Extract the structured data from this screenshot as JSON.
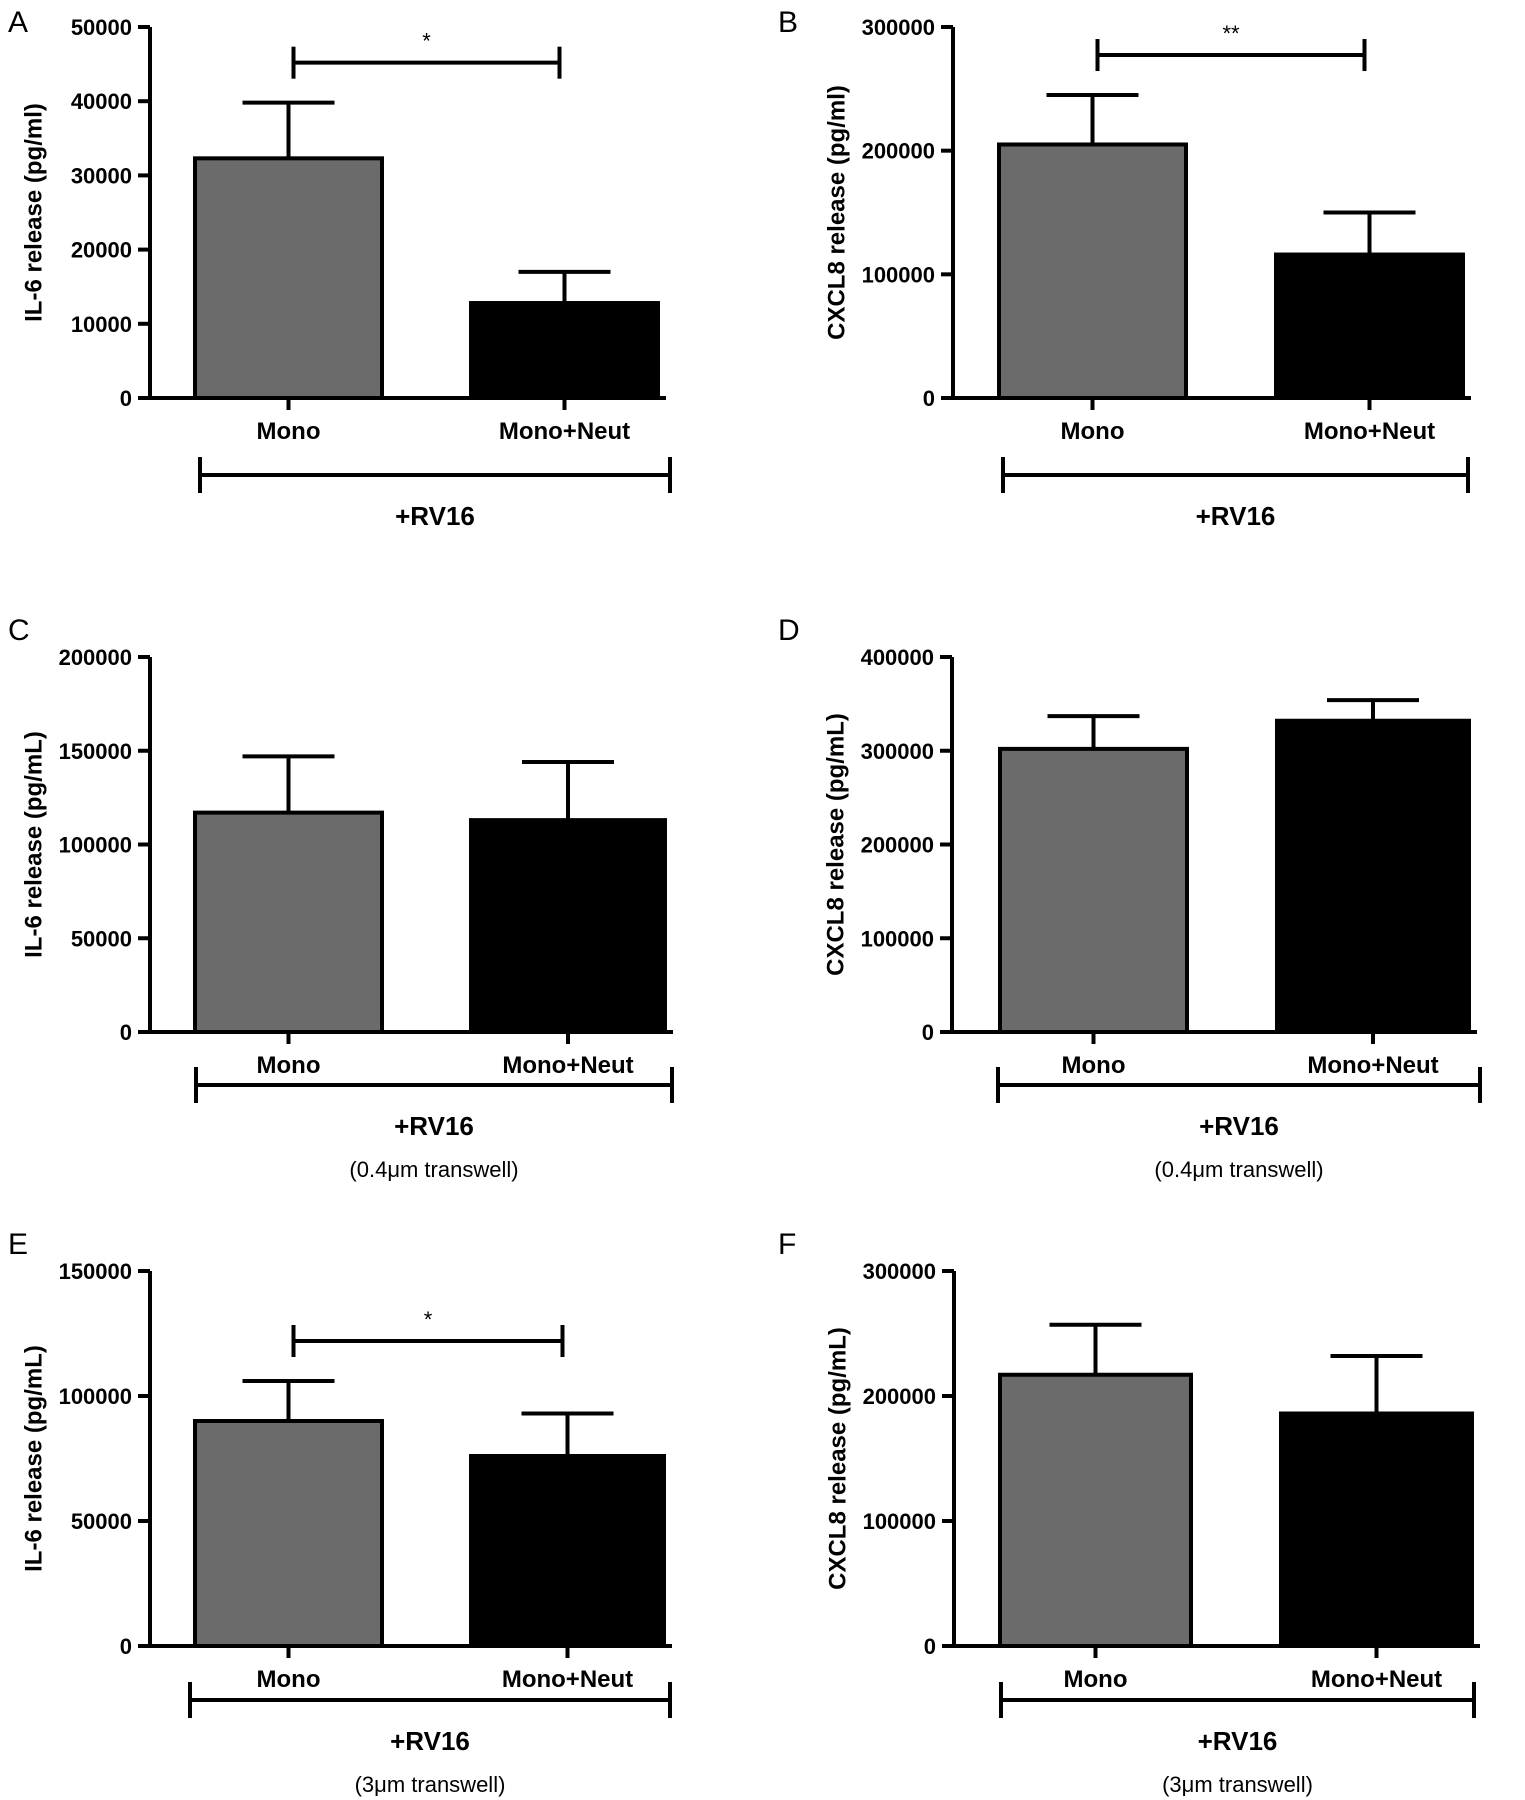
{
  "chart_data": [
    {
      "panel": "A",
      "type": "bar",
      "categories": [
        "Mono",
        "Mono+Neut"
      ],
      "values": [
        32300,
        12800
      ],
      "errors": [
        7500,
        4200
      ],
      "ylabel": "IL-6 release (pg/ml)",
      "ylim": [
        0,
        50000
      ],
      "yticks": [
        0,
        10000,
        20000,
        30000,
        40000,
        50000
      ],
      "ytick_labels": [
        "0",
        "10000",
        "20000",
        "30000",
        "40000",
        "50000"
      ],
      "group_label": "+RV16",
      "sub_label": "",
      "significance": "*",
      "colors": [
        "#6b6b6b",
        "#000000"
      ]
    },
    {
      "panel": "B",
      "type": "bar",
      "categories": [
        "Mono",
        "Mono+Neut"
      ],
      "values": [
        205000,
        116000
      ],
      "errors": [
        40000,
        34000
      ],
      "ylabel": "CXCL8 release (pg/ml)",
      "ylim": [
        0,
        300000
      ],
      "yticks": [
        0,
        100000,
        200000,
        300000
      ],
      "ytick_labels": [
        "0",
        "100000",
        "200000",
        "300000"
      ],
      "group_label": "+RV16",
      "sub_label": "",
      "significance": "**",
      "colors": [
        "#6b6b6b",
        "#000000"
      ]
    },
    {
      "panel": "C",
      "type": "bar",
      "categories": [
        "Mono",
        "Mono+Neut"
      ],
      "values": [
        117000,
        113000
      ],
      "errors": [
        30000,
        31000
      ],
      "ylabel": "IL-6 release (pg/mL)",
      "ylim": [
        0,
        200000
      ],
      "yticks": [
        0,
        50000,
        100000,
        150000,
        200000
      ],
      "ytick_labels": [
        "0",
        "50000",
        "100000",
        "150000",
        "200000"
      ],
      "group_label": "+RV16",
      "sub_label": "(0.4μm transwell)",
      "significance": "",
      "colors": [
        "#6b6b6b",
        "#000000"
      ]
    },
    {
      "panel": "D",
      "type": "bar",
      "categories": [
        "Mono",
        "Mono+Neut"
      ],
      "values": [
        302000,
        332000
      ],
      "errors": [
        35000,
        22000
      ],
      "ylabel": "CXCL8 release (pg/mL)",
      "ylim": [
        0,
        400000
      ],
      "yticks": [
        0,
        100000,
        200000,
        300000,
        400000
      ],
      "ytick_labels": [
        "0",
        "100000",
        "200000",
        "300000",
        "400000"
      ],
      "group_label": "+RV16",
      "sub_label": "(0.4μm transwell)",
      "significance": "",
      "colors": [
        "#6b6b6b",
        "#000000"
      ]
    },
    {
      "panel": "E",
      "type": "bar",
      "categories": [
        "Mono",
        "Mono+Neut"
      ],
      "values": [
        90000,
        76000
      ],
      "errors": [
        16000,
        17000
      ],
      "ylabel": "IL-6 release (pg/mL)",
      "ylim": [
        0,
        150000
      ],
      "yticks": [
        0,
        50000,
        100000,
        150000
      ],
      "ytick_labels": [
        "0",
        "50000",
        "100000",
        "150000"
      ],
      "group_label": "+RV16",
      "sub_label": "(3μm transwell)",
      "significance": "*",
      "colors": [
        "#6b6b6b",
        "#000000"
      ]
    },
    {
      "panel": "F",
      "type": "bar",
      "categories": [
        "Mono",
        "Mono+Neut"
      ],
      "values": [
        217000,
        186000
      ],
      "errors": [
        40000,
        46000
      ],
      "ylabel": "CXCL8 release (pg/mL)",
      "ylim": [
        0,
        300000
      ],
      "yticks": [
        0,
        100000,
        200000,
        300000
      ],
      "ytick_labels": [
        "0",
        "100000",
        "200000",
        "300000"
      ],
      "group_label": "+RV16",
      "sub_label": "(3μm transwell)",
      "significance": "",
      "colors": [
        "#6b6b6b",
        "#000000"
      ]
    }
  ]
}
